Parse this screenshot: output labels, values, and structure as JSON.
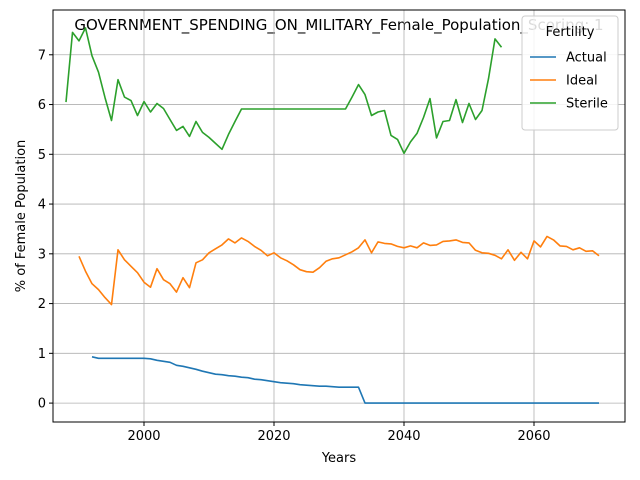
{
  "chart_data": {
    "type": "line",
    "title": "GOVERNMENT_SPENDING_ON_MILITARY_Female_Population_Scoring: 1",
    "xlabel": "Years",
    "ylabel": "% of Female Population",
    "xlim": [
      1986,
      2074
    ],
    "ylim": [
      -0.38,
      7.9
    ],
    "xticks": [
      2000,
      2020,
      2040,
      2060
    ],
    "yticks": [
      0,
      1,
      2,
      3,
      4,
      5,
      6,
      7
    ],
    "grid": true,
    "legend": {
      "title": "Fertility",
      "position": "top-right"
    },
    "series": [
      {
        "name": "Actual",
        "color": "#1f77b4",
        "x": [
          1992,
          1993,
          1995,
          2000,
          2001,
          2002,
          2003,
          2004,
          2005,
          2006,
          2007,
          2008,
          2009,
          2010,
          2011,
          2012,
          2013,
          2014,
          2015,
          2016,
          2017,
          2018,
          2019,
          2020,
          2021,
          2022,
          2023,
          2024,
          2025,
          2026,
          2027,
          2028,
          2029,
          2030,
          2031,
          2032,
          2033,
          2034,
          2035,
          2040,
          2050,
          2060,
          2070
        ],
        "y": [
          0.93,
          0.9,
          0.9,
          0.9,
          0.89,
          0.86,
          0.84,
          0.82,
          0.76,
          0.74,
          0.71,
          0.68,
          0.64,
          0.61,
          0.58,
          0.57,
          0.55,
          0.54,
          0.52,
          0.51,
          0.48,
          0.47,
          0.45,
          0.43,
          0.41,
          0.4,
          0.39,
          0.37,
          0.36,
          0.35,
          0.34,
          0.34,
          0.33,
          0.32,
          0.32,
          0.32,
          0.32,
          0.0,
          0.0,
          0.0,
          0.0,
          0.0,
          0.0
        ]
      },
      {
        "name": "Ideal",
        "color": "#ff7f0e",
        "x": [
          1990,
          1991,
          1992,
          1993,
          1994,
          1995,
          1996,
          1997,
          1998,
          1999,
          2000,
          2001,
          2002,
          2003,
          2004,
          2005,
          2006,
          2007,
          2008,
          2009,
          2010,
          2011,
          2012,
          2013,
          2014,
          2015,
          2016,
          2017,
          2018,
          2019,
          2020,
          2021,
          2022,
          2023,
          2024,
          2025,
          2026,
          2027,
          2028,
          2029,
          2030,
          2031,
          2032,
          2033,
          2034,
          2035,
          2036,
          2037,
          2038,
          2039,
          2040,
          2041,
          2042,
          2043,
          2044,
          2045,
          2046,
          2047,
          2048,
          2049,
          2050,
          2051,
          2052,
          2053,
          2054,
          2055,
          2056,
          2057,
          2058,
          2059,
          2060,
          2061,
          2062,
          2063,
          2064,
          2065,
          2066,
          2067,
          2068,
          2069,
          2070
        ],
        "y": [
          2.95,
          2.65,
          2.4,
          2.28,
          2.12,
          1.98,
          3.08,
          2.88,
          2.75,
          2.62,
          2.43,
          2.33,
          2.7,
          2.48,
          2.4,
          2.23,
          2.52,
          2.32,
          2.82,
          2.88,
          3.02,
          3.1,
          3.18,
          3.3,
          3.22,
          3.32,
          3.25,
          3.15,
          3.07,
          2.96,
          3.02,
          2.92,
          2.86,
          2.78,
          2.68,
          2.64,
          2.63,
          2.72,
          2.85,
          2.9,
          2.92,
          2.98,
          3.04,
          3.12,
          3.28,
          3.02,
          3.24,
          3.21,
          3.2,
          3.15,
          3.12,
          3.16,
          3.12,
          3.22,
          3.17,
          3.18,
          3.25,
          3.26,
          3.28,
          3.23,
          3.22,
          3.07,
          3.02,
          3.01,
          2.97,
          2.9,
          3.08,
          2.87,
          3.03,
          2.9,
          3.26,
          3.14,
          3.35,
          3.28,
          3.16,
          3.15,
          3.08,
          3.12,
          3.05,
          3.06,
          2.96
        ]
      },
      {
        "name": "Sterile",
        "color": "#2ca02c",
        "x": [
          1988,
          1989,
          1990,
          1991,
          1992,
          1993,
          1994,
          1995,
          1996,
          1997,
          1998,
          1999,
          2000,
          2001,
          2002,
          2003,
          2004,
          2005,
          2006,
          2007,
          2008,
          2009,
          2010,
          2011,
          2012,
          2013,
          2014,
          2015,
          2020,
          2025,
          2031,
          2032,
          2033,
          2034,
          2035,
          2036,
          2037,
          2038,
          2039,
          2040,
          2041,
          2042,
          2043,
          2044,
          2045,
          2046,
          2047,
          2048,
          2049,
          2050,
          2051,
          2052,
          2053,
          2054,
          2055
        ],
        "y": [
          6.05,
          7.45,
          7.28,
          7.54,
          6.98,
          6.65,
          6.14,
          5.68,
          6.5,
          6.15,
          6.08,
          5.78,
          6.06,
          5.85,
          6.02,
          5.92,
          5.7,
          5.48,
          5.56,
          5.36,
          5.66,
          5.44,
          5.34,
          5.22,
          5.1,
          5.4,
          5.66,
          5.91,
          5.91,
          5.91,
          5.91,
          6.15,
          6.4,
          6.2,
          5.78,
          5.85,
          5.88,
          5.38,
          5.3,
          5.02,
          5.25,
          5.42,
          5.74,
          6.12,
          5.33,
          5.66,
          5.68,
          6.1,
          5.64,
          6.02,
          5.7,
          5.88,
          6.52,
          7.32,
          7.15
        ]
      }
    ]
  }
}
